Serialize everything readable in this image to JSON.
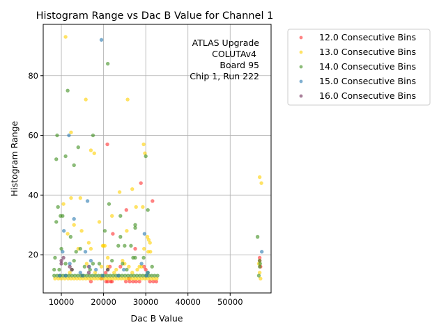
{
  "chart_data": {
    "type": "scatter",
    "title": "Histogram Range vs Dac B Value for Channel 1",
    "xlabel": "Dac B Value",
    "ylabel": "Histogram Range",
    "xlim": [
      5700,
      59700
    ],
    "ylim": [
      7.2,
      97.2
    ],
    "xticks": [
      10000,
      20000,
      30000,
      40000,
      50000
    ],
    "xtick_labels": [
      "10000",
      "20000",
      "30000",
      "40000",
      "50000"
    ],
    "yticks": [
      20,
      40,
      60,
      80
    ],
    "ytick_labels": [
      "20",
      "40",
      "60",
      "80"
    ],
    "grid": true,
    "legend_placement": "outside-top-right",
    "annotation": [
      "ATLAS Upgrade",
      "COLUTAv4",
      "Board 95",
      "Chip 1, Run 222"
    ],
    "series": [
      {
        "name": "12.0 Consecutive Bins",
        "color": "#ff3030",
        "points": [
          [
            20900,
            57
          ],
          [
            28850,
            44
          ],
          [
            25400,
            35
          ],
          [
            31600,
            38
          ],
          [
            22200,
            27
          ],
          [
            27500,
            22
          ],
          [
            16500,
            16
          ],
          [
            20500,
            14
          ],
          [
            29600,
            16
          ],
          [
            57000,
            19
          ],
          [
            57200,
            16
          ],
          [
            57000,
            18
          ],
          [
            17000,
            11
          ],
          [
            21000,
            11
          ],
          [
            21700,
            11
          ],
          [
            25300,
            11
          ],
          [
            26200,
            11
          ],
          [
            27000,
            11
          ],
          [
            27700,
            11
          ],
          [
            28500,
            11
          ],
          [
            31000,
            11
          ],
          [
            31800,
            11
          ],
          [
            32500,
            11
          ],
          [
            21500,
            16
          ],
          [
            24000,
            16
          ],
          [
            30000,
            15
          ],
          [
            19500,
            12
          ],
          [
            26000,
            12
          ],
          [
            22000,
            11
          ],
          [
            20600,
            11
          ]
        ]
      },
      {
        "name": "13.0 Consecutive Bins",
        "color": "#ffd000",
        "points": [
          [
            11000,
            93
          ],
          [
            15800,
            72
          ],
          [
            25700,
            72
          ],
          [
            29500,
            57
          ],
          [
            29800,
            54
          ],
          [
            12300,
            61
          ],
          [
            17000,
            55
          ],
          [
            17800,
            54
          ],
          [
            23800,
            41
          ],
          [
            26800,
            42
          ],
          [
            29300,
            36
          ],
          [
            27700,
            36
          ],
          [
            12300,
            39
          ],
          [
            14500,
            39
          ],
          [
            10500,
            37
          ],
          [
            11500,
            27
          ],
          [
            13000,
            30
          ],
          [
            19000,
            31
          ],
          [
            14800,
            28
          ],
          [
            22000,
            33
          ],
          [
            25500,
            28
          ],
          [
            30400,
            26
          ],
          [
            30700,
            25
          ],
          [
            31000,
            24
          ],
          [
            57000,
            46
          ],
          [
            57400,
            44
          ],
          [
            16500,
            24
          ],
          [
            20000,
            23
          ],
          [
            19800,
            23
          ],
          [
            20300,
            23
          ],
          [
            21000,
            19
          ],
          [
            29600,
            22
          ],
          [
            30600,
            21
          ],
          [
            31100,
            21
          ],
          [
            17000,
            22
          ],
          [
            14000,
            22
          ],
          [
            16000,
            17
          ],
          [
            21000,
            16
          ],
          [
            25000,
            17
          ],
          [
            24500,
            18
          ],
          [
            26000,
            16
          ],
          [
            28500,
            16
          ],
          [
            29000,
            16
          ],
          [
            56800,
            17
          ],
          [
            57000,
            14
          ],
          [
            57200,
            12
          ],
          [
            8500,
            12
          ],
          [
            9300,
            12
          ],
          [
            10000,
            12
          ],
          [
            10800,
            12
          ],
          [
            11600,
            12
          ],
          [
            12300,
            12
          ],
          [
            13000,
            12
          ],
          [
            13700,
            12
          ],
          [
            14400,
            12
          ],
          [
            15100,
            12
          ],
          [
            15800,
            12
          ],
          [
            16500,
            12
          ],
          [
            17200,
            12
          ],
          [
            17900,
            12
          ],
          [
            18600,
            12
          ],
          [
            19300,
            12
          ],
          [
            20000,
            12
          ],
          [
            20700,
            12
          ],
          [
            21400,
            12
          ],
          [
            22100,
            12
          ],
          [
            22800,
            12
          ],
          [
            23500,
            12
          ],
          [
            24200,
            12
          ],
          [
            24900,
            12
          ],
          [
            25600,
            12
          ],
          [
            26300,
            12
          ],
          [
            27000,
            12
          ],
          [
            27700,
            12
          ],
          [
            28400,
            12
          ],
          [
            29100,
            12
          ],
          [
            29800,
            12
          ],
          [
            30500,
            12
          ],
          [
            31200,
            12
          ],
          [
            31900,
            12
          ],
          [
            32600,
            12
          ],
          [
            18000,
            14
          ],
          [
            22500,
            14
          ],
          [
            26800,
            14
          ],
          [
            15000,
            13
          ],
          [
            23000,
            15
          ],
          [
            19500,
            16
          ],
          [
            28000,
            15
          ],
          [
            12000,
            14
          ]
        ]
      },
      {
        "name": "14.0 Consecutive Bins",
        "color": "#3f8f1f",
        "points": [
          [
            21000,
            84
          ],
          [
            11500,
            75
          ],
          [
            14000,
            56
          ],
          [
            8800,
            52
          ],
          [
            13000,
            50
          ],
          [
            9000,
            60
          ],
          [
            17500,
            60
          ],
          [
            11000,
            53
          ],
          [
            30000,
            53
          ],
          [
            21300,
            37
          ],
          [
            30500,
            35
          ],
          [
            9200,
            36
          ],
          [
            9800,
            33
          ],
          [
            10300,
            33
          ],
          [
            8800,
            31
          ],
          [
            24000,
            33
          ],
          [
            27500,
            30
          ],
          [
            27500,
            29
          ],
          [
            12200,
            26
          ],
          [
            10000,
            22
          ],
          [
            20300,
            28
          ],
          [
            23500,
            23
          ],
          [
            25000,
            23
          ],
          [
            26500,
            23
          ],
          [
            27500,
            19
          ],
          [
            56500,
            26
          ],
          [
            57100,
            17
          ],
          [
            57000,
            18
          ],
          [
            57000,
            16
          ],
          [
            56800,
            13
          ],
          [
            8500,
            19
          ],
          [
            8300,
            15
          ],
          [
            9500,
            15
          ],
          [
            11000,
            17
          ],
          [
            13000,
            18
          ],
          [
            15500,
            16
          ],
          [
            17500,
            17
          ],
          [
            19000,
            17
          ],
          [
            22000,
            18
          ],
          [
            24500,
            17
          ],
          [
            27000,
            19
          ],
          [
            29500,
            19
          ],
          [
            31500,
            16
          ],
          [
            8300,
            13
          ],
          [
            9000,
            13
          ],
          [
            9700,
            13
          ],
          [
            10400,
            13
          ],
          [
            11100,
            13
          ],
          [
            11800,
            13
          ],
          [
            12500,
            13
          ],
          [
            13200,
            13
          ],
          [
            13900,
            13
          ],
          [
            14600,
            13
          ],
          [
            15300,
            13
          ],
          [
            16000,
            13
          ],
          [
            16700,
            13
          ],
          [
            17400,
            13
          ],
          [
            18100,
            13
          ],
          [
            18800,
            13
          ],
          [
            19500,
            13
          ],
          [
            20200,
            13
          ],
          [
            20900,
            13
          ],
          [
            21600,
            13
          ],
          [
            22300,
            13
          ],
          [
            23000,
            13
          ],
          [
            23700,
            13
          ],
          [
            24400,
            13
          ],
          [
            25100,
            13
          ],
          [
            25800,
            13
          ],
          [
            26500,
            13
          ],
          [
            27200,
            13
          ],
          [
            27900,
            13
          ],
          [
            28600,
            13
          ],
          [
            29300,
            13
          ],
          [
            30000,
            13
          ],
          [
            30700,
            13
          ],
          [
            31400,
            13
          ],
          [
            32100,
            13
          ],
          [
            32800,
            13
          ],
          [
            12500,
            15
          ],
          [
            16800,
            15
          ],
          [
            21000,
            15
          ],
          [
            25500,
            15
          ],
          [
            30500,
            14
          ],
          [
            14500,
            22
          ],
          [
            24000,
            26
          ],
          [
            13500,
            21
          ]
        ]
      },
      {
        "name": "15.0 Consecutive Bins",
        "color": "#2a7ab0",
        "points": [
          [
            19500,
            92
          ],
          [
            11800,
            60
          ],
          [
            16200,
            38
          ],
          [
            13000,
            32
          ],
          [
            10600,
            28
          ],
          [
            29700,
            27
          ],
          [
            10300,
            21
          ],
          [
            15700,
            21
          ],
          [
            17000,
            18
          ],
          [
            57500,
            21
          ],
          [
            12000,
            17
          ],
          [
            14500,
            14
          ],
          [
            18200,
            15
          ],
          [
            29000,
            17
          ],
          [
            30500,
            14
          ],
          [
            24800,
            15
          ],
          [
            9600,
            13
          ],
          [
            11000,
            13
          ],
          [
            15000,
            13
          ],
          [
            19800,
            13
          ],
          [
            23500,
            13
          ],
          [
            30200,
            13
          ],
          [
            16600,
            16
          ]
        ]
      },
      {
        "name": "16.0 Consecutive Bins",
        "color": "#6e2a55",
        "points": [
          [
            10500,
            19
          ],
          [
            10000,
            18
          ],
          [
            12000,
            16
          ],
          [
            12500,
            15
          ],
          [
            16500,
            14
          ],
          [
            10000,
            17
          ],
          [
            21000,
            15
          ]
        ]
      }
    ]
  }
}
